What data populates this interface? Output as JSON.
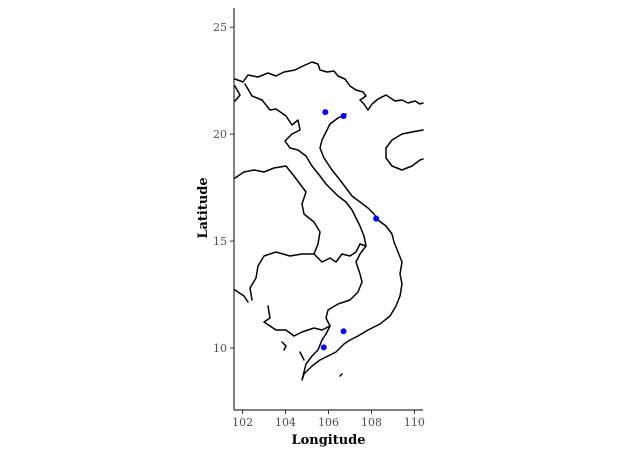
{
  "chart_data": {
    "type": "scatter",
    "title": "",
    "xlabel": "Longitude",
    "ylabel": "Latitude",
    "xlim": [
      101.6,
      110.4
    ],
    "ylim": [
      7.1,
      25.9
    ],
    "x_ticks": [
      102,
      104,
      106,
      108,
      110
    ],
    "y_ticks": [
      10,
      15,
      20,
      25
    ],
    "x_tick_labels": [
      "102",
      "104",
      "106",
      "108",
      "110"
    ],
    "y_tick_labels": [
      "10",
      "15",
      "20",
      "25"
    ],
    "grid": false,
    "legend": "none",
    "basemap": "Vietnam and neighboring country borders",
    "point_color": "#0000ff",
    "line_color": "#000000",
    "points": [
      {
        "x": 105.85,
        "y": 21.03
      },
      {
        "x": 106.7,
        "y": 20.85
      },
      {
        "x": 108.22,
        "y": 16.05
      },
      {
        "x": 106.7,
        "y": 10.78
      },
      {
        "x": 105.78,
        "y": 10.03
      }
    ]
  }
}
